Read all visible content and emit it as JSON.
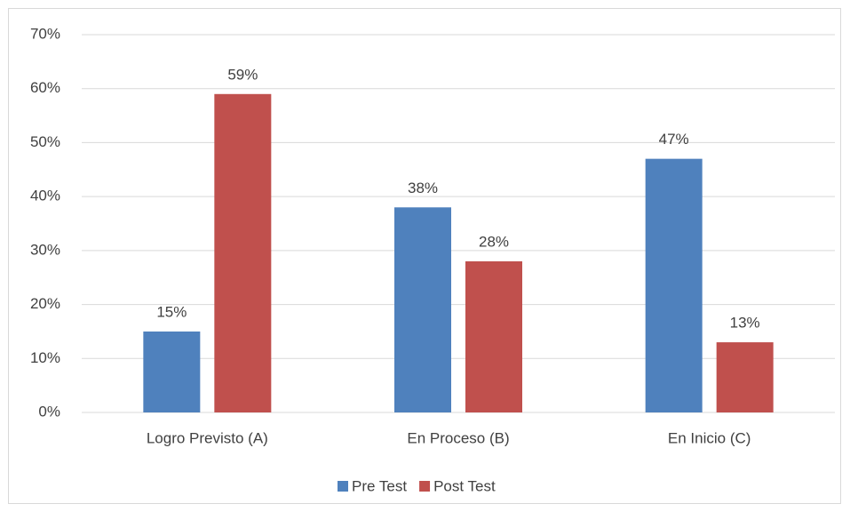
{
  "chart_data": {
    "type": "bar",
    "categories": [
      "Logro Previsto (A)",
      "En Proceso (B)",
      "En Inicio (C)"
    ],
    "series": [
      {
        "name": "Pre Test",
        "color": "#4f81bd",
        "values": [
          15,
          38,
          47
        ],
        "value_labels": [
          "15%",
          "38%",
          "47%"
        ]
      },
      {
        "name": "Post Test",
        "color": "#c0504d",
        "values": [
          59,
          28,
          13
        ],
        "value_labels": [
          "59%",
          "28%",
          "13%"
        ]
      }
    ],
    "ylim": [
      0,
      70
    ],
    "yticks": [
      {
        "value": 0,
        "label": "0%"
      },
      {
        "value": 10,
        "label": "10%"
      },
      {
        "value": 20,
        "label": "20%"
      },
      {
        "value": 30,
        "label": "30%"
      },
      {
        "value": 40,
        "label": "40%"
      },
      {
        "value": 50,
        "label": "50%"
      },
      {
        "value": 60,
        "label": "60%"
      },
      {
        "value": 70,
        "label": "70%"
      }
    ],
    "grid": true,
    "legend": "bottom"
  }
}
